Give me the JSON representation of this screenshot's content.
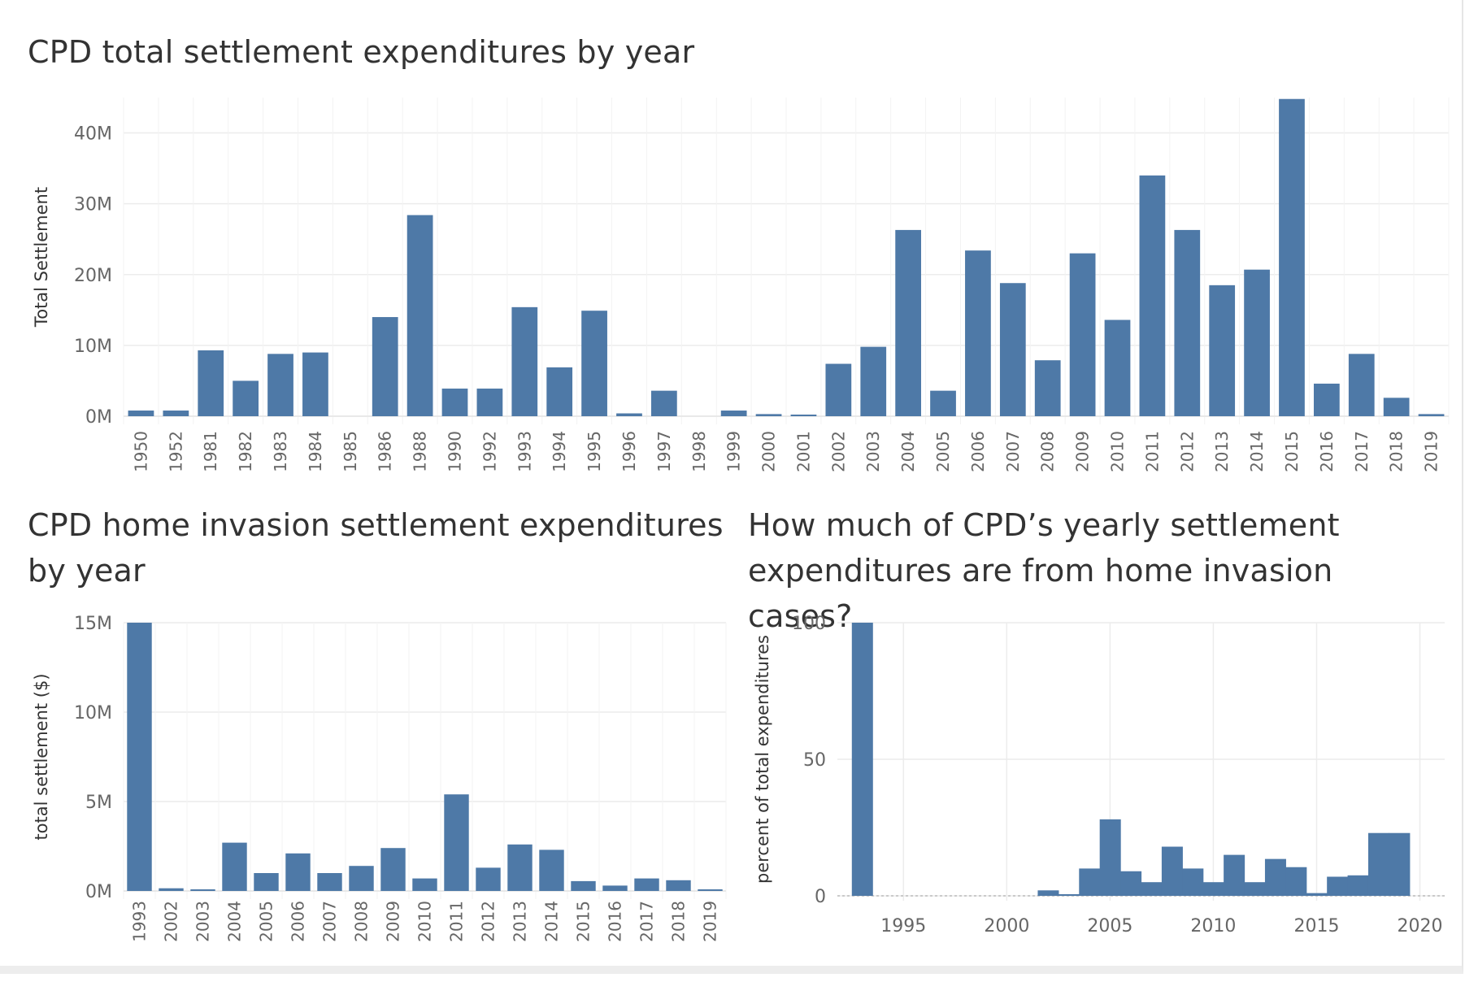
{
  "titles": {
    "top": "CPD total settlement expenditures by year",
    "bottom_left": "CPD home invasion settlement expenditures by year",
    "bottom_right": "How much of CPD’s yearly settlement expenditures are from home invasion cases?"
  },
  "colors": {
    "bar": "#4e79a7",
    "grid": "#ececec",
    "tick_text": "#666666",
    "zero_line": "#b0b0b0"
  },
  "chart_data": [
    {
      "id": "total",
      "type": "bar",
      "title": "CPD total settlement expenditures by year",
      "ylabel": "Total Settlement",
      "xlabel": "",
      "categories": [
        "1950",
        "1952",
        "1981",
        "1982",
        "1983",
        "1984",
        "1985",
        "1986",
        "1988",
        "1990",
        "1992",
        "1993",
        "1994",
        "1995",
        "1996",
        "1997",
        "1998",
        "1999",
        "2000",
        "2001",
        "2002",
        "2003",
        "2004",
        "2005",
        "2006",
        "2007",
        "2008",
        "2009",
        "2010",
        "2011",
        "2012",
        "2013",
        "2014",
        "2015",
        "2016",
        "2017",
        "2018",
        "2019"
      ],
      "values": [
        0.8,
        0.8,
        9.3,
        5.0,
        8.8,
        9.0,
        0,
        14.0,
        28.4,
        3.9,
        3.9,
        15.4,
        6.9,
        14.9,
        0.4,
        3.6,
        0,
        0.8,
        0.3,
        0.1,
        7.4,
        9.8,
        26.3,
        3.6,
        23.4,
        18.8,
        7.9,
        23.0,
        13.6,
        34.0,
        26.3,
        18.5,
        20.7,
        44.8,
        4.6,
        8.8,
        2.6,
        0.3
      ],
      "y_ticks": [
        {
          "v": 0,
          "label": "0M"
        },
        {
          "v": 10,
          "label": "10M"
        },
        {
          "v": 20,
          "label": "20M"
        },
        {
          "v": 30,
          "label": "30M"
        },
        {
          "v": 40,
          "label": "40M"
        }
      ],
      "ylim": [
        0,
        45
      ],
      "unit": "millions of dollars",
      "grid": true,
      "legend": "none"
    },
    {
      "id": "home",
      "type": "bar",
      "title": "CPD home invasion settlement expenditures by year",
      "ylabel": "total settlement ($)",
      "xlabel": "",
      "categories": [
        "1993",
        "2002",
        "2003",
        "2004",
        "2005",
        "2006",
        "2007",
        "2008",
        "2009",
        "2010",
        "2011",
        "2012",
        "2013",
        "2014",
        "2015",
        "2016",
        "2017",
        "2018",
        "2019"
      ],
      "values": [
        15.0,
        0.15,
        0.05,
        2.7,
        1.0,
        2.1,
        1.0,
        1.4,
        2.4,
        0.7,
        5.4,
        1.3,
        2.6,
        2.3,
        0.55,
        0.3,
        0.7,
        0.6,
        0.05
      ],
      "y_ticks": [
        {
          "v": 0,
          "label": "0M"
        },
        {
          "v": 5,
          "label": "5M"
        },
        {
          "v": 10,
          "label": "10M"
        },
        {
          "v": 15,
          "label": "15M"
        }
      ],
      "ylim": [
        0,
        15
      ],
      "unit": "millions of dollars",
      "grid": true,
      "legend": "none"
    },
    {
      "id": "pct",
      "type": "bar",
      "title": "How much of CPD’s yearly settlement expenditures are from home invasion cases?",
      "ylabel": "percent of total expenditures",
      "xlabel": "",
      "x": [
        1993,
        2002,
        2003,
        2004,
        2005,
        2006,
        2007,
        2008,
        2009,
        2010,
        2011,
        2012,
        2013,
        2014,
        2015,
        2016,
        2017,
        2018,
        2019
      ],
      "values": [
        100,
        2,
        0.5,
        10,
        28,
        9,
        5,
        18,
        10,
        5,
        15,
        5,
        13.5,
        10.5,
        1,
        7,
        7.5,
        23,
        23
      ],
      "x_ticks": [
        1995,
        2000,
        2005,
        2010,
        2015,
        2020
      ],
      "xlim": [
        1991.8,
        2021.2
      ],
      "y_ticks": [
        {
          "v": 0,
          "label": "0"
        },
        {
          "v": 50,
          "label": "50"
        },
        {
          "v": 100,
          "label": "100"
        }
      ],
      "ylim": [
        0,
        100
      ],
      "grid": true,
      "legend": "none"
    }
  ]
}
